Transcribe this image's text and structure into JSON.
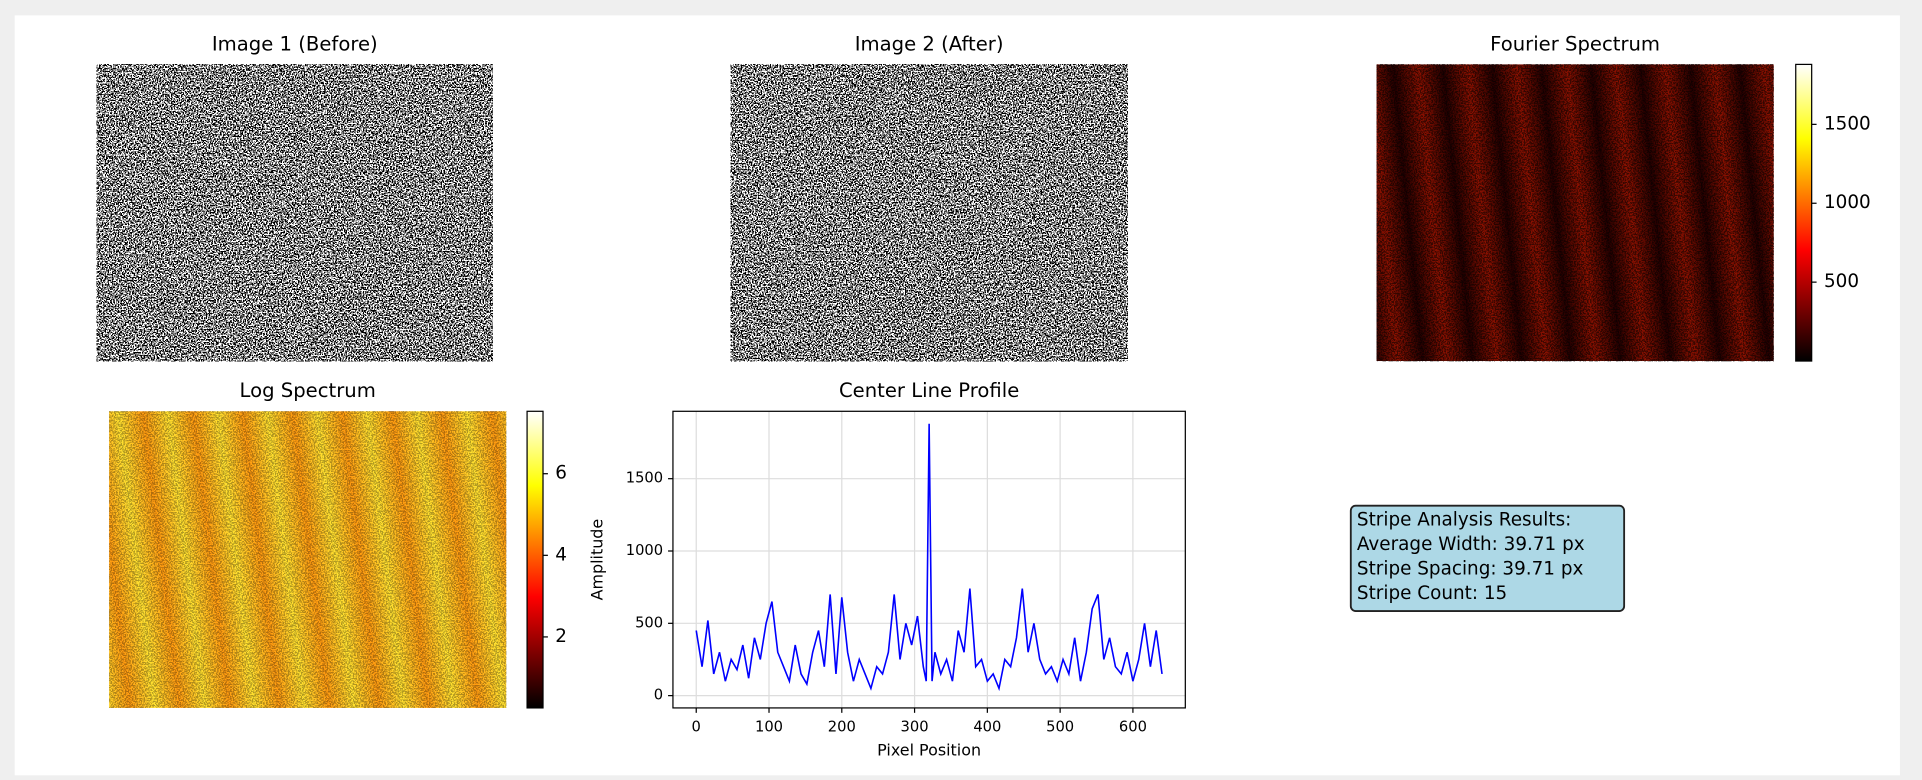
{
  "chart_data": [
    {
      "type": "image",
      "title": "Image 1 (Before)"
    },
    {
      "type": "image",
      "title": "Image 2 (After)"
    },
    {
      "type": "image",
      "title": "Fourier Spectrum",
      "colormap": "hot",
      "clim": [
        0,
        1880
      ],
      "cticks": [
        500,
        1000,
        1500
      ]
    },
    {
      "type": "image",
      "title": "Log Spectrum",
      "colormap": "hot",
      "clim": [
        0.26,
        7.53
      ],
      "cticks": [
        2,
        4,
        6
      ]
    },
    {
      "type": "line",
      "title": "Center Line Profile",
      "xlabel": "Pixel Position",
      "ylabel": "Amplitude",
      "color": "#0000ff",
      "grid": true,
      "xlim": [
        -32,
        672
      ],
      "ylim": [
        -85,
        1966
      ],
      "xticks": [
        0,
        100,
        200,
        300,
        400,
        500,
        600
      ],
      "yticks": [
        0,
        500,
        1000,
        1500
      ],
      "x": [
        0,
        8,
        16,
        24,
        32,
        40,
        48,
        56,
        64,
        72,
        80,
        88,
        96,
        104,
        112,
        120,
        128,
        136,
        144,
        152,
        160,
        168,
        176,
        184,
        192,
        200,
        208,
        216,
        224,
        232,
        240,
        248,
        256,
        264,
        272,
        280,
        288,
        296,
        304,
        312,
        316,
        320,
        324,
        328,
        336,
        344,
        352,
        360,
        368,
        376,
        384,
        392,
        400,
        408,
        416,
        424,
        432,
        440,
        448,
        456,
        464,
        472,
        480,
        488,
        496,
        504,
        512,
        520,
        528,
        536,
        544,
        552,
        560,
        568,
        576,
        584,
        592,
        600,
        608,
        616,
        624,
        632,
        640
      ],
      "values": [
        450,
        200,
        520,
        150,
        300,
        100,
        250,
        180,
        350,
        120,
        400,
        250,
        500,
        650,
        300,
        200,
        100,
        350,
        150,
        80,
        300,
        450,
        200,
        700,
        150,
        680,
        300,
        100,
        250,
        150,
        50,
        200,
        150,
        300,
        700,
        250,
        500,
        350,
        550,
        200,
        100,
        1880,
        100,
        300,
        150,
        250,
        100,
        450,
        300,
        740,
        200,
        250,
        100,
        150,
        50,
        250,
        200,
        400,
        740,
        300,
        500,
        250,
        150,
        200,
        100,
        250,
        150,
        400,
        100,
        300,
        600,
        700,
        250,
        400,
        200,
        150,
        300,
        100,
        250,
        500,
        200,
        450,
        150
      ]
    }
  ],
  "info_box": {
    "lines": [
      "Stripe Analysis Results:",
      "Average Width: 39.71 px",
      "Stripe Spacing: 39.71 px",
      "Stripe Count: 15"
    ],
    "color": "#add8e6"
  }
}
